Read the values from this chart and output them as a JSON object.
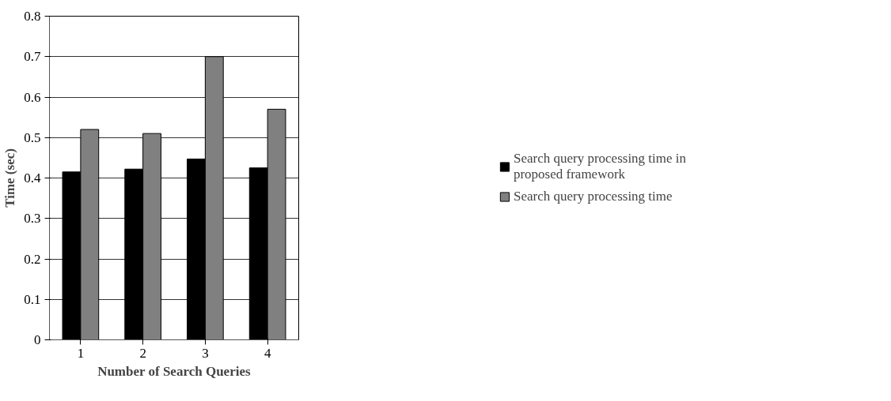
{
  "chart_data": {
    "type": "bar",
    "xlabel": "Number of Search Queries",
    "ylabel": "Time (sec)",
    "categories": [
      "1",
      "2",
      "3",
      "4"
    ],
    "series": [
      {
        "name": "Search query processing time in proposed framework",
        "color": "#000000",
        "values": [
          0.415,
          0.422,
          0.447,
          0.425
        ]
      },
      {
        "name": "Search query processing time",
        "color": "#808080",
        "values": [
          0.52,
          0.51,
          0.7,
          0.57
        ]
      }
    ],
    "ylim": [
      0,
      0.8
    ],
    "yticks": [
      0,
      0.1,
      0.2,
      0.3,
      0.4,
      0.5,
      0.6,
      0.7,
      0.8
    ],
    "grid": "y",
    "legend": "right"
  }
}
